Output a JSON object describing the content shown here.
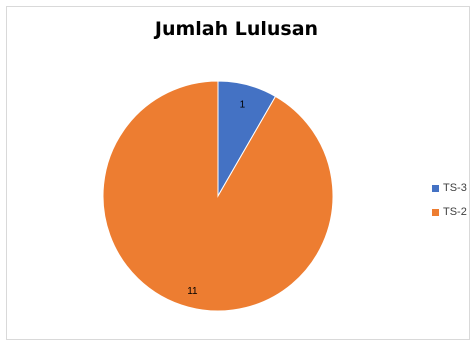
{
  "chart_data": {
    "type": "pie",
    "title": "Jumlah Lulusan",
    "categories": [
      "TS-3",
      "TS-2"
    ],
    "values": [
      1,
      11
    ],
    "colors": [
      "#4472c4",
      "#ed7d31"
    ],
    "data_labels": [
      "1",
      "11"
    ],
    "legend_position": "right"
  }
}
